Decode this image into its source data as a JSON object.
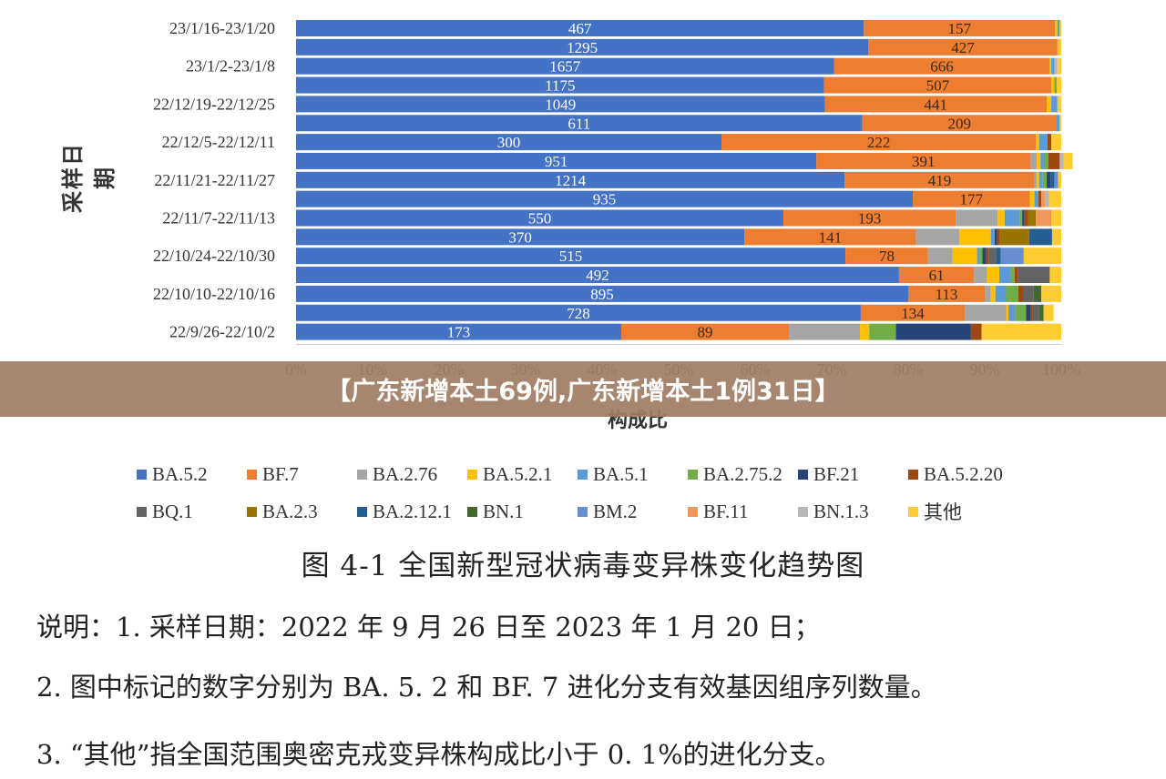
{
  "chart_data": {
    "type": "bar",
    "orientation": "horizontal",
    "stacked": true,
    "ylabel": "采样日期",
    "xlabel": "构成比",
    "xlim": [
      0,
      100
    ],
    "x_ticks": [
      "0%",
      "10%",
      "20%",
      "30%",
      "40%",
      "50%",
      "60%",
      "70%",
      "80%",
      "90%",
      "100%"
    ],
    "grid": false,
    "legend_position": "bottom",
    "row_labels": [
      "23/1/16-23/1/20",
      "",
      "23/1/2-23/1/8",
      "",
      "22/12/19-22/12/25",
      "",
      "22/12/5-22/12/11",
      "",
      "22/11/21-22/11/27",
      "",
      "22/11/7-22/11/13",
      "",
      "22/10/24-22/10/30",
      "",
      "22/10/10-22/10/16",
      "",
      "22/9/26-22/10/2"
    ],
    "series": [
      {
        "name": "BA.5.2",
        "color": "#4472C4",
        "values": [
          74.2,
          74.8,
          70.3,
          69.0,
          69.1,
          74.0,
          55.6,
          68.0,
          71.7,
          80.6,
          63.7,
          58.6,
          71.8,
          78.8,
          80.0,
          73.8,
          42.5
        ]
      },
      {
        "name": "BF.7",
        "color": "#ED7D31",
        "values": [
          25.0,
          24.7,
          28.2,
          29.7,
          29.0,
          25.4,
          41.1,
          28.0,
          24.8,
          15.3,
          22.5,
          22.4,
          10.8,
          9.8,
          10.0,
          13.6,
          21.9
        ]
      },
      {
        "name": "BA.2.76",
        "color": "#A5A5A5",
        "values": [
          0,
          0,
          0,
          0,
          0,
          0,
          0,
          0.8,
          0.3,
          0,
          5.5,
          5.7,
          3.2,
          1.7,
          0.8,
          5.4,
          9.3
        ]
      },
      {
        "name": "BA.5.2.1",
        "color": "#FFC000",
        "values": [
          0.3,
          0.2,
          0.2,
          0.4,
          0.6,
          0,
          0.4,
          0.5,
          0.3,
          0.6,
          0.9,
          4.1,
          3.2,
          1.6,
          0.6,
          0.3,
          1.2
        ]
      },
      {
        "name": "BA.5.1",
        "color": "#5B9BD5",
        "values": [
          0.3,
          0,
          0.4,
          0,
          0.8,
          0.4,
          1.1,
          0.5,
          0.5,
          0.5,
          2.0,
          0.5,
          0.3,
          1.5,
          1.4,
          0.9,
          0
        ]
      },
      {
        "name": "BA.2.75.2",
        "color": "#70AD47",
        "values": [
          0,
          0,
          0,
          0.3,
          0,
          0,
          0,
          0.5,
          0.5,
          0,
          0.3,
          0,
          0.4,
          0.5,
          1.6,
          1.4,
          3.5
        ]
      },
      {
        "name": "BF.21",
        "color": "#264478",
        "values": [
          0,
          0,
          0,
          0,
          0,
          0,
          0,
          0,
          0.5,
          0,
          0.3,
          0.3,
          0.5,
          0,
          0,
          0.6,
          9.8
        ]
      },
      {
        "name": "BA.5.2.20",
        "color": "#9E480E",
        "values": [
          0,
          0,
          0,
          0,
          0,
          0,
          0.5,
          1.5,
          0,
          0.4,
          0.5,
          0.4,
          0.3,
          0.4,
          0.6,
          0.3,
          1.4
        ]
      },
      {
        "name": "BQ.1",
        "color": "#636363",
        "values": [
          0,
          0,
          0,
          0,
          0,
          0,
          0,
          0,
          0,
          0,
          0,
          0,
          1.0,
          4.2,
          1.4,
          0.8,
          0
        ]
      },
      {
        "name": "BA.2.3",
        "color": "#997300",
        "values": [
          0,
          0,
          0,
          0,
          0,
          0,
          0,
          0,
          0,
          0,
          1.0,
          3.8,
          0,
          0,
          0,
          0,
          0
        ]
      },
      {
        "name": "BA.2.12.1",
        "color": "#255E91",
        "values": [
          0,
          0,
          0,
          0,
          0,
          0,
          0,
          0,
          0.5,
          0,
          0,
          3.0,
          0.6,
          0,
          0,
          0,
          0
        ]
      },
      {
        "name": "BN.1",
        "color": "#43682B",
        "values": [
          0,
          0,
          0,
          0,
          0,
          0,
          0,
          0,
          0,
          0,
          0,
          0,
          0,
          0,
          1.0,
          0.6,
          0
        ]
      },
      {
        "name": "BM.2",
        "color": "#698ED0",
        "values": [
          0,
          0,
          0,
          0,
          0,
          0,
          0,
          0,
          0.5,
          0,
          0,
          0,
          3.0,
          0,
          0,
          0,
          0
        ]
      },
      {
        "name": "BF.11",
        "color": "#F1975A",
        "values": [
          0,
          0,
          0,
          0,
          0,
          0,
          0,
          0,
          0,
          0.5,
          2.0,
          0,
          0,
          0,
          0,
          0,
          0
        ]
      },
      {
        "name": "BN.1.3",
        "color": "#B7B7B7",
        "values": [
          0,
          0,
          0.4,
          0,
          0,
          0,
          0,
          0.5,
          0,
          0.5,
          0,
          0,
          0,
          0,
          0,
          0,
          0
        ]
      },
      {
        "name": "其他",
        "color": "#FFCD33",
        "values": [
          0.2,
          0.3,
          0.5,
          0.6,
          0.5,
          0.2,
          1.3,
          1.2,
          0.4,
          1.6,
          1.3,
          1.2,
          4.9,
          1.5,
          2.6,
          1.3,
          10.4
        ]
      }
    ],
    "bar_labels": {
      "BA.5.2": [
        "467",
        "1295",
        "1657",
        "1175",
        "1049",
        "611",
        "300",
        "951",
        "1214",
        "935",
        "550",
        "370",
        "515",
        "492",
        "895",
        "728",
        "173"
      ],
      "BF.7": [
        "157",
        "427",
        "666",
        "507",
        "441",
        "209",
        "222",
        "391",
        "419",
        "177",
        "193",
        "141",
        "78",
        "61",
        "113",
        "134",
        "89"
      ]
    }
  },
  "banner": {
    "title": "【广东新增本土69例,广东新增本土1例31日】"
  },
  "caption": "图 4-1  全国新型冠状病毒变异株变化趋势图",
  "notes": [
    "说明：1. 采样日期：2022 年 9 月 26 日至 2023 年 1 月 20 日；",
    "2. 图中标记的数字分别为 BA. 5. 2 和 BF. 7 进化分支有效基因组序列数量。",
    "3. “其他”指全国范围奥密克戎变异株构成比小于 0. 1%的进化分支。"
  ]
}
